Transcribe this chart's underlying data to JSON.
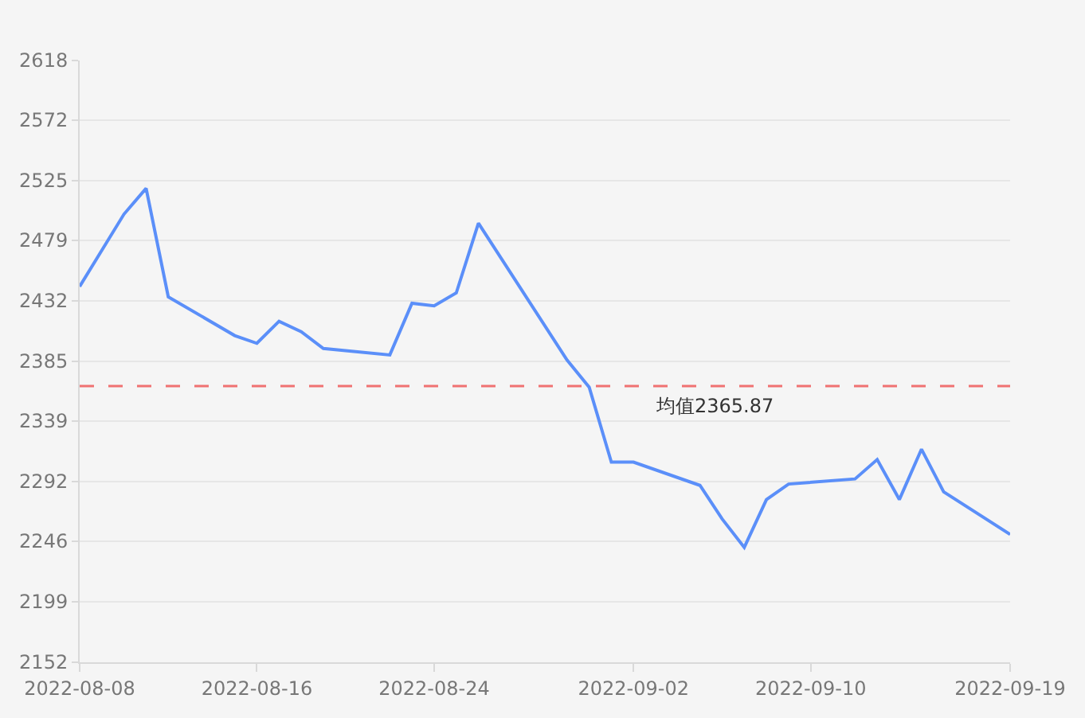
{
  "chart_data": {
    "type": "line",
    "x": [
      "2022-08-08",
      "2022-08-09",
      "2022-08-10",
      "2022-08-11",
      "2022-08-12",
      "2022-08-15",
      "2022-08-16",
      "2022-08-17",
      "2022-08-18",
      "2022-08-19",
      "2022-08-22",
      "2022-08-23",
      "2022-08-24",
      "2022-08-25",
      "2022-08-26",
      "2022-08-30",
      "2022-08-31",
      "2022-09-01",
      "2022-09-02",
      "2022-09-05",
      "2022-09-06",
      "2022-09-07",
      "2022-09-08",
      "2022-09-09",
      "2022-09-12",
      "2022-09-13",
      "2022-09-14",
      "2022-09-15",
      "2022-09-16",
      "2022-09-19"
    ],
    "series": [
      {
        "color": "#5b8ff9",
        "values": [
          2443,
          2471,
          2499,
          2519,
          2435,
          2405,
          2399,
          2416,
          2408,
          2395,
          2390,
          2430,
          2428,
          2438,
          2492,
          2386,
          2365,
          2307,
          2307,
          2289,
          2263,
          2241,
          2278,
          2290,
          2294,
          2309,
          2278,
          2317,
          2284,
          2251
        ]
      }
    ],
    "xlim": [
      "2022-08-08",
      "2022-09-19"
    ],
    "xticks": [
      {
        "value": "2022-08-08",
        "label": "2022-08-08"
      },
      {
        "value": "2022-08-16",
        "label": "2022-08-16"
      },
      {
        "value": "2022-08-24",
        "label": "2022-08-24"
      },
      {
        "value": "2022-09-02",
        "label": "2022-09-02"
      },
      {
        "value": "2022-09-10",
        "label": "2022-09-10"
      },
      {
        "value": "2022-09-19",
        "label": "2022-09-19"
      }
    ],
    "ylim": [
      2152,
      2618
    ],
    "yticks": [
      2152,
      2199,
      2246,
      2292,
      2339,
      2385,
      2432,
      2479,
      2525,
      2572,
      2618
    ],
    "ref_lines": [
      {
        "axis": "y",
        "value": 2365.87,
        "label": "均值2365.87",
        "color": "#f07272",
        "line_style": "dashed"
      }
    ],
    "grid": "y",
    "marker": "none",
    "line_style": "solid"
  }
}
